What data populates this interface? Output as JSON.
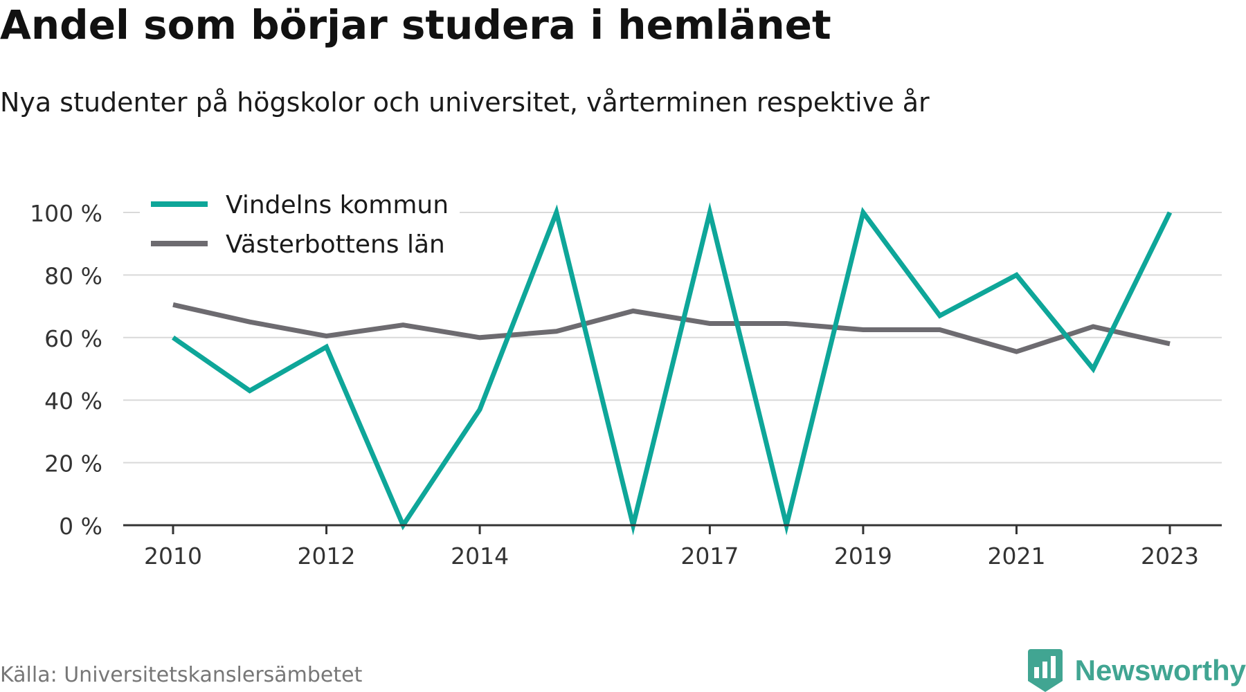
{
  "chart_data": {
    "type": "line",
    "title": "Andel som börjar studera i hemlänet",
    "subtitle": "Nya studenter på högskolor och universitet, vårterminen respektive år",
    "x": [
      2010,
      2011,
      2012,
      2013,
      2014,
      2015,
      2016,
      2017,
      2018,
      2019,
      2020,
      2021,
      2022,
      2023
    ],
    "x_ticks": [
      2010,
      2012,
      2014,
      2017,
      2019,
      2021,
      2023
    ],
    "x_tick_labels": [
      "2010",
      "2012",
      "2014",
      "2017",
      "2019",
      "2021",
      "2023"
    ],
    "y_ticks": [
      0,
      20,
      40,
      60,
      80,
      100
    ],
    "y_tick_labels": [
      "0 %",
      "20 %",
      "40 %",
      "60 %",
      "80 %",
      "100 %"
    ],
    "ylim": [
      0,
      100
    ],
    "xlabel": "",
    "ylabel": "",
    "grid": true,
    "legend_position": "top-left",
    "series": [
      {
        "name": "Vindelns kommun",
        "color": "#0ea699",
        "values": [
          60,
          43,
          57,
          0,
          37,
          100,
          0,
          100,
          0,
          100,
          67,
          80,
          50,
          100
        ]
      },
      {
        "name": "Västerbottens län",
        "color": "#6d6b70",
        "values": [
          70.5,
          65,
          60.5,
          64,
          60,
          62,
          68.5,
          64.5,
          64.5,
          62.5,
          62.5,
          55.5,
          63.5,
          58
        ]
      }
    ]
  },
  "footer": {
    "source": "Källa: Universitetskanslersämbetet",
    "brand": "Newsworthy",
    "brand_color": "#41a592"
  }
}
